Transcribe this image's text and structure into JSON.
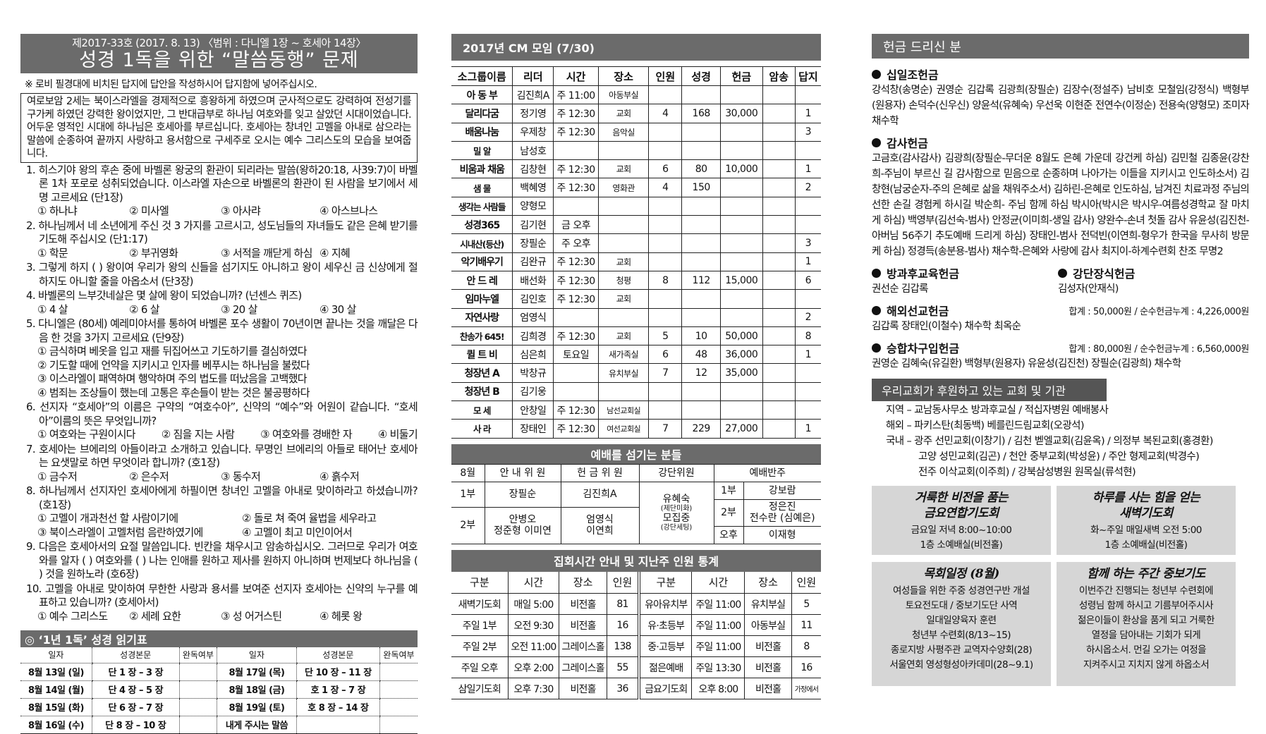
{
  "quiz": {
    "issue_line": "제2017-33호  (2017. 8. 13)  〈범위 : 다니엘 1장 ~ 호세아 14장〉",
    "title": "성경 1독을 위한 “말씀동행” 문제",
    "notice": "※ 로비 필경대에 비치된 답지에 답안을 작성하시어 답지함에 넣어주십시오.",
    "intro": "여로보암 2세는 북이스라엘을 경제적으로 흥왕하게 하였으며 군사적으로도 강력하여 전성기를 구가케 하였던 강력한 왕이었지만, 그 반대급부로 하나님 여호와를 잊고 살았던 시대이었습니다. 어두운 영적인 시대에 하나님은 호세아를 부르십니다. 호세아는 창녀인 고멜을 아내로 삼으라는 말씀에 순종하여 끝까지 사랑하고 용서함으로 구세주로 오시는 예수 그리스도의 모습을 보여줍니다.",
    "questions": [
      {
        "text": "1. 히스기야 왕의 후손 중에 바벨론 왕궁의 환관이 되리라는 말씀(왕하20:18, 사39:7)이 바벨론 1차 포로로 성취되었습니다. 이스라엘 자손으로 바벨론의 환관이 된 사람을 보기에서 세 명 고르세요 (단1장)",
        "options": [
          "① 하나냐",
          "② 미사엘",
          "③ 아사랴",
          "④ 아스브나스"
        ]
      },
      {
        "text": "2. 하나님께서 네 소년에게 주신 것 3 가지를 고르시고, 성도님들의 자녀들도 같은 은혜 받기를 기도해 주십시오 (단1:17)",
        "options": [
          "① 학문",
          "② 부귀영화",
          "③ 서적을 깨닫게 하심",
          "④ 지혜"
        ]
      },
      {
        "text": "3. 그렇게 하지 (                    ) 왕이여 우리가 왕의 신들을 섬기지도 아니하고 왕이 세우신 금 신상에게 절하지도 아니할 줄을 아옵소서 (단3장)",
        "options": []
      },
      {
        "text": "4. 바벨론의 느부갓네살은 몇 살에 왕이 되었습니까? (넌센스 퀴즈)",
        "options": [
          "① 4 살",
          "② 6 살",
          "③ 20 살",
          "④ 30 살"
        ]
      },
      {
        "text": "5. 다니엘은 (80세) 예레미야서를 통하여 바벨론 포수 생활이 70년이면 끝나는 것을 깨달은 다음 한 것을 3가지 고르세요 (단9장)",
        "options": [
          "① 금식하며 베옷을 입고 재를 뒤집어쓰고 기도하기를 결심하였다",
          "② 기도할 때에 언약을 지키시고 인자를 베푸시는 하나님을 불렀다",
          "③ 이스라엘이 패역하며 행악하며 주의 법도를 떠났음을 고백했다",
          "④ 범죄는 조상들이 했는데 고통은 후손들이 받는 것은 불공평하다"
        ]
      },
      {
        "text": "6. 선지자 “호세아”의 이름은 구약의 “여호수아”, 신약의 “예수”와 어원이 같습니다. “호세아”이름의 뜻은 무엇입니까?",
        "options": [
          "① 여호와는 구원이시다",
          "② 짐을 지는 사람",
          "③ 여호와를 경배한 자",
          "④ 비둘기"
        ]
      },
      {
        "text": "7. 호세아는 브에리의 아들이라고 소개하고 있습니다. 무명인 브에리의 아들로 태어난 호세아는 요샛말로 하면 무엇이라 합니까? (호1장)",
        "options": [
          "① 금수저",
          "② 은수저",
          "③ 동수저",
          "④ 흙수저"
        ]
      },
      {
        "text": "8. 하나님께서 선지자인 호세아에게 하필이면 창녀인 고멜을 아내로 맞이하라고 하셨습니까? (호1장)",
        "options": [
          "① 고멜이 개과천선 할 사람이기에",
          "② 돌로 쳐 죽여 율법을 세우라고",
          "③ 북이스라엘이 고멜처럼 음란하였기에",
          "④ 고멜이 최고 미인이어서"
        ]
      },
      {
        "text": "9. 다음은 호세아서의 요절 말씀입니다. 빈칸을 채우시고 암송하십시오. 그러므로 우리가 여호와를 알자 (        ) 여호와를 (        ) 나는 인애를 원하고 제사를 원하지 아니하며 번제보다 하나님을 (          ) 것을 원하노라 (호6장)",
        "options": []
      },
      {
        "text": "10. 고멜을 아내로 맞이하여 무한한 사랑과 용서를 보여준 선지자 호세아는 신약의 누구를 예표하고 있습니까? (호세아서)",
        "options": [
          "① 예수 그리스도",
          "② 세례 요한",
          "③ 성 어거스틴",
          "④ 헤롯 왕"
        ]
      }
    ]
  },
  "reading": {
    "title": "◎ ‘1년 1독’  성경 읽기표",
    "headers": [
      "일자",
      "성경본문",
      "완독여부",
      "일자",
      "성경본문",
      "완독여부"
    ],
    "rows": [
      [
        "8월 13일 (일)",
        "단 1 장 – 3 장",
        "",
        "8월 17일 (목)",
        "단 10 장 – 11 장",
        ""
      ],
      [
        "8월 14일 (월)",
        "단 4 장 – 5 장",
        "",
        "8월 18일 (금)",
        "호 1 장 – 7 장",
        ""
      ],
      [
        "8월 15일 (화)",
        "단 6 장 – 7 장",
        "",
        "8월 19일 (토)",
        "호 8 장 – 14 장",
        ""
      ],
      [
        "8월 16일 (수)",
        "단 8 장 – 10 장",
        "",
        "내게 주시는 말씀",
        "",
        ""
      ]
    ]
  },
  "cm": {
    "title": "2017년 CM 모임 (7/30)",
    "headers": [
      "소그룹이름",
      "리더",
      "시간",
      "장소",
      "인원",
      "성경",
      "헌금",
      "암송",
      "답지"
    ],
    "rows": [
      [
        "아 동 부",
        "김진희A",
        "주 11:00",
        "아동부실",
        "",
        "",
        "",
        "",
        ""
      ],
      [
        "달리다굼",
        "정기영",
        "주 12:30",
        "교회",
        "4",
        "168",
        "30,000",
        "",
        "1"
      ],
      [
        "배움나눔",
        "우제창",
        "주 12:30",
        "음악실",
        "",
        "",
        "",
        "",
        "3"
      ],
      [
        "밀     알",
        "남성호",
        "",
        "",
        "",
        "",
        "",
        "",
        ""
      ],
      [
        "비움과 채움",
        "김창현",
        "주 12:30",
        "교회",
        "6",
        "80",
        "10,000",
        "",
        "1"
      ],
      [
        "샘     물",
        "백혜영",
        "주 12:30",
        "영화관",
        "4",
        "150",
        "",
        "",
        "2"
      ],
      [
        "생각는 사람들",
        "양형모",
        "",
        "",
        "",
        "",
        "",
        "",
        ""
      ],
      [
        "성경365",
        "김기현",
        "금 오후",
        "",
        "",
        "",
        "",
        "",
        ""
      ],
      [
        "시내산(등산)",
        "장필순",
        "주 오후",
        "",
        "",
        "",
        "",
        "",
        "3"
      ],
      [
        "악기배우기",
        "김완규",
        "주 12:30",
        "교회",
        "",
        "",
        "",
        "",
        "1"
      ],
      [
        "안 드 레",
        "배선화",
        "주 12:30",
        "청평",
        "8",
        "112",
        "15,000",
        "",
        "6"
      ],
      [
        "임마누엘",
        "김인호",
        "주 12:30",
        "교회",
        "",
        "",
        "",
        "",
        ""
      ],
      [
        "자연사랑",
        "엄영식",
        "",
        "",
        "",
        "",
        "",
        "",
        "2"
      ],
      [
        "찬송가 645!",
        "김희경",
        "주 12:30",
        "교회",
        "5",
        "10",
        "50,000",
        "",
        "8"
      ],
      [
        "퀼 트 비",
        "심은희",
        "토요일",
        "새가족실",
        "6",
        "48",
        "36,000",
        "",
        "1"
      ],
      [
        "청장년 A",
        "박창규",
        "",
        "유치부실",
        "7",
        "12",
        "35,000",
        "",
        ""
      ],
      [
        "청장년 B",
        "김기웅",
        "",
        "",
        "",
        "",
        "",
        "",
        ""
      ],
      [
        "모     세",
        "안창일",
        "주 12:30",
        "남선교회실",
        "",
        "",
        "",
        "",
        ""
      ],
      [
        "사     라",
        "장태인",
        "주 12:30",
        "여선교회실",
        "7",
        "229",
        "27,000",
        "",
        "1"
      ]
    ]
  },
  "worship": {
    "title": "예배를 섬기는 분들",
    "month": "8월",
    "headers": {
      "ushers": "안 내 위 원",
      "offering": "헌 금 위 원",
      "altar": "강단위원",
      "accomp": "예배반주"
    },
    "s1": {
      "label": "1부",
      "ushers": "장필순",
      "offering": "김진희A"
    },
    "s2": {
      "label": "2부",
      "ushers1": "안병오",
      "ushers2": "정준형  이미연",
      "offering1": "엄영식",
      "offering2": "이연희"
    },
    "altar": {
      "name1": "유혜숙",
      "role1": "(제단미화)",
      "name2": "모집중",
      "role2": "(강단세팅)"
    },
    "accomp": [
      {
        "label": "1부",
        "names": [
          "강보람"
        ]
      },
      {
        "label": "2부",
        "names": [
          "정은진",
          "전수란 (심예은)"
        ]
      },
      {
        "label": "오후",
        "names": [
          "이재형"
        ]
      }
    ]
  },
  "meetings": {
    "title": "집회시간 안내 및 지난주 인원 통계",
    "headers": [
      "구분",
      "시간",
      "장소",
      "인원",
      "구분",
      "시간",
      "장소",
      "인원"
    ],
    "rows": [
      [
        "새벽기도회",
        "매일 5:00",
        "비전홀",
        "81",
        "유아유치부",
        "주일 11:00",
        "유치부실",
        "5"
      ],
      [
        "주일 1부",
        "오전 9:30",
        "비전홀",
        "16",
        "유·초등부",
        "주일 11:00",
        "아동부실",
        "11"
      ],
      [
        "주일 2부",
        "오전 11:00",
        "그레이스홀",
        "138",
        "중·고등부",
        "주일 11:00",
        "비전홀",
        "8"
      ],
      [
        "주일 오후",
        "오후 2:00",
        "그레이스홀",
        "55",
        "젊은예배",
        "주일 13:30",
        "비전홀",
        "16"
      ],
      [
        "삼일기도회",
        "오후 7:30",
        "비전홀",
        "36",
        "금요기도회",
        "오후 8:00",
        "비전홀",
        "가정에서"
      ]
    ]
  },
  "offerings": {
    "title": "헌금 드리신 분",
    "tithe": {
      "label": "십일조헌금",
      "names": "강석창(송명순) 권영순 김갑록 김광희(장필순) 김장수(정설주) 남비호 모철임(강정식) 백형부(원용자) 손덕수(신우신) 양윤석(유혜숙) 우선욱 이현준 전연수(이정순) 전용숙(양형모) 조미자 채수학"
    },
    "thanks": {
      "label": "감사헌금",
      "names": "고금호(감사감사) 김광희(장필순-무더운 8월도 은혜 가운데 강건케 하심) 김민철 김종윤(강찬희-주님이 부르신 길 감사함으로 믿음으로 순종하며 나아가는 이들을 지키시고 인도하소서) 김창현(남궁순자-주의 은혜로 삶을 채워주소서) 김하린-은혜로 인도하심, 남겨진 치료과정 주님의 선한 손길 경험케 하시길 박순희- 주님 함께 하심 박시아(박시은 박시우-여름성경학교 잘 마치게 하심) 백영부(김선숙-범사)  안정균(이미희-생일 감사) 양완수-손녀 첫돌 감사 유윤성(김진천-아버님 56주기 추도예배 드리게 하심) 장태인-범사 전덕빈(이연희-형우가 한국을 무사히 방문케 하심) 정경득(송분용-범사) 채수학-은혜와 사랑에 감사 최지이-하계수련회 찬조 무명2"
    },
    "afterschool": {
      "label": "방과후교육헌금",
      "names": "권선순  김갑록"
    },
    "altar": {
      "label": "강단장식헌금",
      "names": "김성자(안재식)"
    },
    "mission": {
      "label": "해외선교헌금",
      "total": "합계 : 50,000원 / 순수헌금누계 : 4,226,000원",
      "names": "김갑록 장태인(이철수) 채수학 최옥순"
    },
    "van": {
      "label": "승합차구입헌금",
      "total": "합계 : 80,000원 / 순수헌금누계 : 6,560,000원",
      "names": "권영순  김혜숙(유길환)  백형부(원용자)  유윤성(김진천)  장필순(김광희)  채수학"
    }
  },
  "support": {
    "title": "우리교회가 후원하고 있는 교회 및 기관",
    "lines": [
      "지역 – 교남동사무소 방과후교실 / 적십자병원 예배봉사",
      "해외 – 파키스탄(최동백) 베를린드림교회(오광석)",
      "국내 – 광주 선민교회(이창기) / 김천 벧엘교회(김윤옥) / 의정부 복된교회(홍경환)",
      "고양 성민교회(김곤) / 천안 중부교회(박성윤) / 주안 형제교회(박경수)",
      "전주 이삭교회(이주희) / 강북삼성병원 원목실(류석현)"
    ]
  },
  "boxes": [
    {
      "title": [
        "거룩한 비전을 품는",
        "금요연합기도회"
      ],
      "lines": [
        "금요일 저녁 8:00~10:00",
        "1층 소예배실(비전홀)"
      ]
    },
    {
      "title": [
        "하루를 사는 힘을 얻는",
        "새벽기도회"
      ],
      "lines": [
        "화~주일 매일새벽 오전 5:00",
        "1층 소예배실(비전홀)"
      ]
    },
    {
      "title": [
        "목회일정 (8월)"
      ],
      "lines": [
        "여성들을 위한 주중 성경연구반 개설",
        "토요전도대 / 중보기도단 사역",
        "일대일양육자 훈련",
        "청년부 수련회(8/13~15)",
        "종로지방 사평주관 교역자수양회(28)",
        "서울연회 영성형성아카데미(28~9.1)"
      ]
    },
    {
      "title": [
        "함께 하는 주간 중보기도"
      ],
      "lines": [
        "이번주간 진행되는 청년부 수련회에",
        "성령님 함께 하시고 기름부어주시사",
        "젊은이들이 환상을 품게 되고 거룩한",
        "열정을 담아내는 기회가 되게",
        "하시옵소서. 먼길 오가는 여정을",
        "지켜주시고 지치지 않게 하옵소서"
      ]
    }
  ]
}
